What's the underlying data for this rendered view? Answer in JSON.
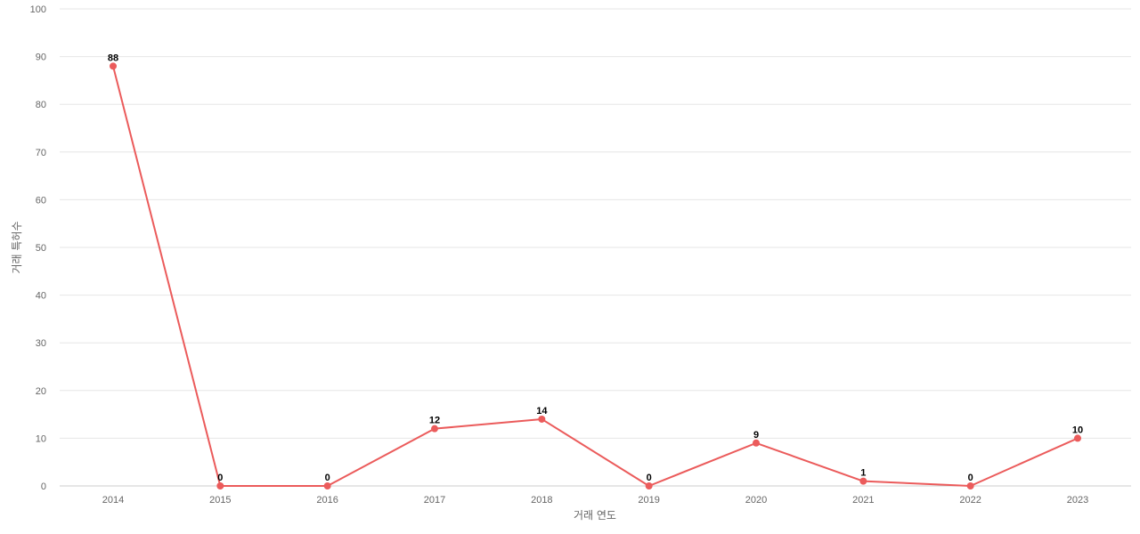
{
  "chart_data": {
    "type": "line",
    "title": "",
    "xlabel": "거래 연도",
    "ylabel": "거래 특허수",
    "ylim": [
      0,
      100
    ],
    "yticks": [
      0,
      10,
      20,
      30,
      40,
      50,
      60,
      70,
      80,
      90,
      100
    ],
    "grid": true,
    "legend": "none",
    "categories": [
      "2014",
      "2015",
      "2016",
      "2017",
      "2018",
      "2019",
      "2020",
      "2021",
      "2022",
      "2023"
    ],
    "series": [
      {
        "color": "#eb5b5b",
        "values": [
          88,
          0,
          0,
          12,
          14,
          0,
          9,
          1,
          0,
          10
        ]
      }
    ]
  }
}
